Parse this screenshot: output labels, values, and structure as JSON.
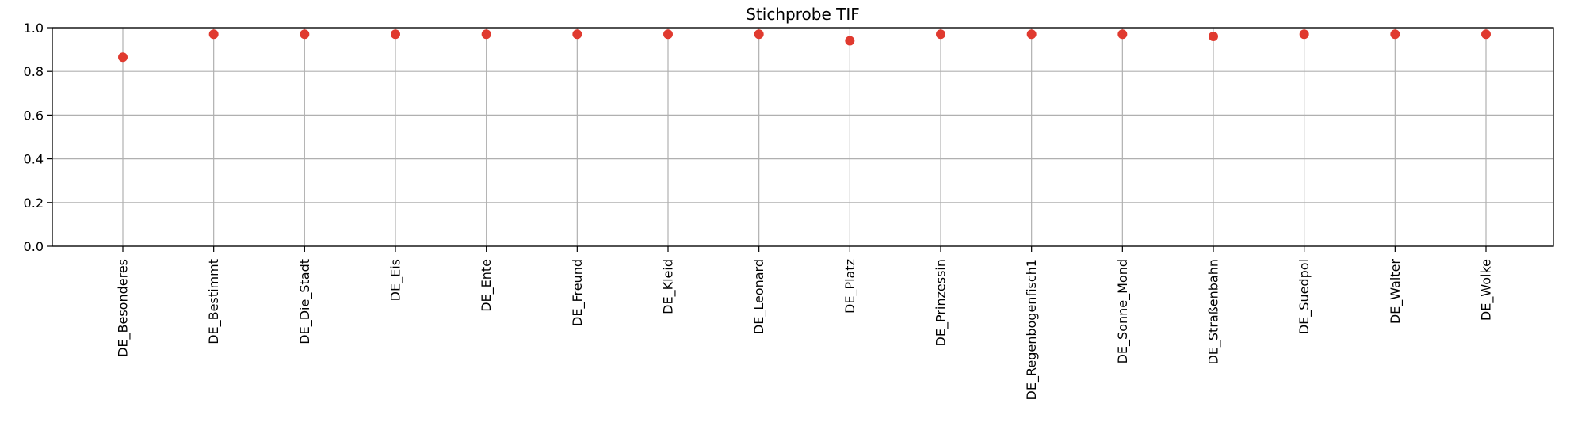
{
  "chart_data": {
    "type": "scatter",
    "title": "Stichprobe TIF",
    "xlabel": "",
    "ylabel": "",
    "categories": [
      "DE_Besonderes",
      "DE_Bestimmt",
      "DE_Die_Stadt",
      "DE_Eis",
      "DE_Ente",
      "DE_Freund",
      "DE_Kleid",
      "DE_Leonard",
      "DE_Platz",
      "DE_Prinzessin",
      "DE_Regenbogenfisch1",
      "DE_Sonne_Mond",
      "DE_Straßenbahn",
      "DE_Suedpol",
      "DE_Walter",
      "DE_Wolke"
    ],
    "series": [
      {
        "values": [
          0.865,
          0.97,
          0.97,
          0.97,
          0.97,
          0.97,
          0.97,
          0.97,
          0.94,
          0.97,
          0.97,
          0.97,
          0.96,
          0.97,
          0.97,
          0.97
        ],
        "color": "#e03a2f"
      }
    ],
    "ylim": [
      0,
      1.0
    ],
    "yticks": [
      "0.0",
      "0.2",
      "0.4",
      "0.6",
      "0.8",
      "1.0"
    ],
    "grid": true,
    "legend": "none"
  }
}
